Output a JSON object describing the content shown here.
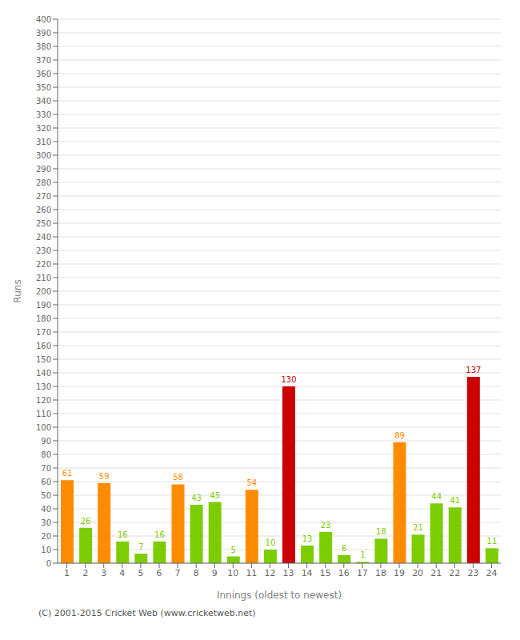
{
  "chart_data": {
    "type": "bar",
    "xlabel": "Innings (oldest to newest)",
    "ylabel": "Runs",
    "categories": [
      "1",
      "2",
      "3",
      "4",
      "5",
      "6",
      "7",
      "8",
      "9",
      "10",
      "11",
      "12",
      "13",
      "14",
      "15",
      "16",
      "17",
      "18",
      "19",
      "20",
      "21",
      "22",
      "23",
      "24"
    ],
    "values": [
      61,
      26,
      59,
      16,
      7,
      16,
      58,
      43,
      45,
      5,
      54,
      10,
      130,
      13,
      23,
      6,
      1,
      18,
      89,
      21,
      44,
      41,
      137,
      11
    ],
    "colors": [
      "#ff8c00",
      "#7ccd00",
      "#ff8c00",
      "#7ccd00",
      "#7ccd00",
      "#7ccd00",
      "#ff8c00",
      "#7ccd00",
      "#7ccd00",
      "#7ccd00",
      "#ff8c00",
      "#7ccd00",
      "#cc0000",
      "#7ccd00",
      "#7ccd00",
      "#7ccd00",
      "#7ccd00",
      "#7ccd00",
      "#ff8c00",
      "#7ccd00",
      "#7ccd00",
      "#7ccd00",
      "#cc0000",
      "#7ccd00"
    ],
    "ylim": [
      0,
      400
    ],
    "yticks": [
      0,
      10,
      20,
      30,
      40,
      50,
      60,
      70,
      80,
      90,
      100,
      110,
      120,
      130,
      140,
      150,
      160,
      170,
      180,
      190,
      200,
      210,
      220,
      230,
      240,
      250,
      260,
      270,
      280,
      290,
      300,
      310,
      320,
      330,
      340,
      350,
      360,
      370,
      380,
      390,
      400
    ],
    "grid": true,
    "data_labels": true,
    "annotations": [
      "(C) 2001-2015 Cricket Web (www.cricketweb.net)"
    ]
  }
}
